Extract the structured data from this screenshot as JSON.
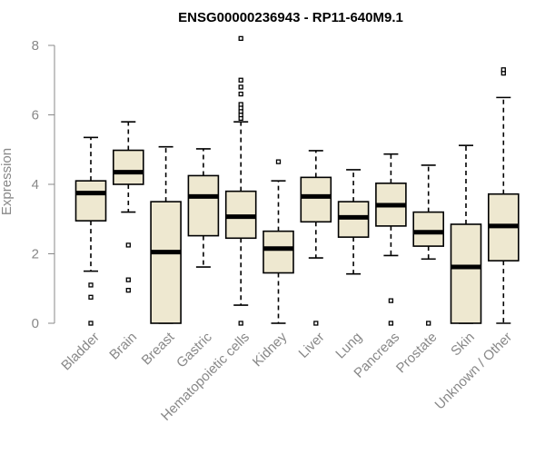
{
  "chart_data": {
    "type": "boxplot",
    "title": "ENSG00000236943 - RP11-640M9.1",
    "xlabel": "",
    "ylabel": "Expression",
    "ylim": [
      0,
      8
    ],
    "yticks": [
      0,
      2,
      4,
      6,
      8
    ],
    "box_fill": "#EEE8D0",
    "median_color": "#000000",
    "axis_color": "#888888",
    "categories": [
      "Bladder",
      "Brain",
      "Breast",
      "Gastric",
      "Hematopoietic cells",
      "Kidney",
      "Liver",
      "Lung",
      "Pancreas",
      "Prostate",
      "Skin",
      "Unknown / Other"
    ],
    "boxes": [
      {
        "name": "Bladder",
        "min": 1.5,
        "q1": 2.95,
        "median": 3.75,
        "q3": 4.1,
        "max": 5.35,
        "outliers": [
          0.0,
          0.75,
          1.1
        ]
      },
      {
        "name": "Brain",
        "min": 3.2,
        "q1": 4.0,
        "median": 4.35,
        "q3": 4.98,
        "max": 5.8,
        "outliers": [
          0.95,
          1.25,
          2.25
        ]
      },
      {
        "name": "Breast",
        "min": 0.0,
        "q1": 0.0,
        "median": 2.05,
        "q3": 3.5,
        "max": 5.08,
        "outliers": []
      },
      {
        "name": "Gastric",
        "min": 1.62,
        "q1": 2.52,
        "median": 3.65,
        "q3": 4.25,
        "max": 5.02,
        "outliers": []
      },
      {
        "name": "Hematopoietic cells",
        "min": 0.52,
        "q1": 2.45,
        "median": 3.07,
        "q3": 3.8,
        "max": 5.8,
        "outliers": [
          0.0,
          5.9,
          6.0,
          6.1,
          6.2,
          6.3,
          6.6,
          6.8,
          7.0,
          8.2
        ]
      },
      {
        "name": "Kidney",
        "min": 0.0,
        "q1": 1.45,
        "median": 2.15,
        "q3": 2.65,
        "max": 4.1,
        "outliers": [
          4.65
        ]
      },
      {
        "name": "Liver",
        "min": 1.88,
        "q1": 2.92,
        "median": 3.65,
        "q3": 4.2,
        "max": 4.97,
        "outliers": [
          0.0
        ]
      },
      {
        "name": "Lung",
        "min": 1.42,
        "q1": 2.48,
        "median": 3.05,
        "q3": 3.5,
        "max": 4.42,
        "outliers": []
      },
      {
        "name": "Pancreas",
        "min": 1.95,
        "q1": 2.8,
        "median": 3.4,
        "q3": 4.03,
        "max": 4.87,
        "outliers": [
          0.0,
          0.65
        ]
      },
      {
        "name": "Prostate",
        "min": 1.85,
        "q1": 2.22,
        "median": 2.62,
        "q3": 3.2,
        "max": 4.55,
        "outliers": [
          0.0
        ]
      },
      {
        "name": "Skin",
        "min": 0.0,
        "q1": 0.0,
        "median": 1.62,
        "q3": 2.85,
        "max": 5.12,
        "outliers": []
      },
      {
        "name": "Unknown / Other",
        "min": 0.0,
        "q1": 1.8,
        "median": 2.8,
        "q3": 3.72,
        "max": 6.5,
        "outliers": [
          7.2,
          7.3
        ]
      }
    ]
  }
}
